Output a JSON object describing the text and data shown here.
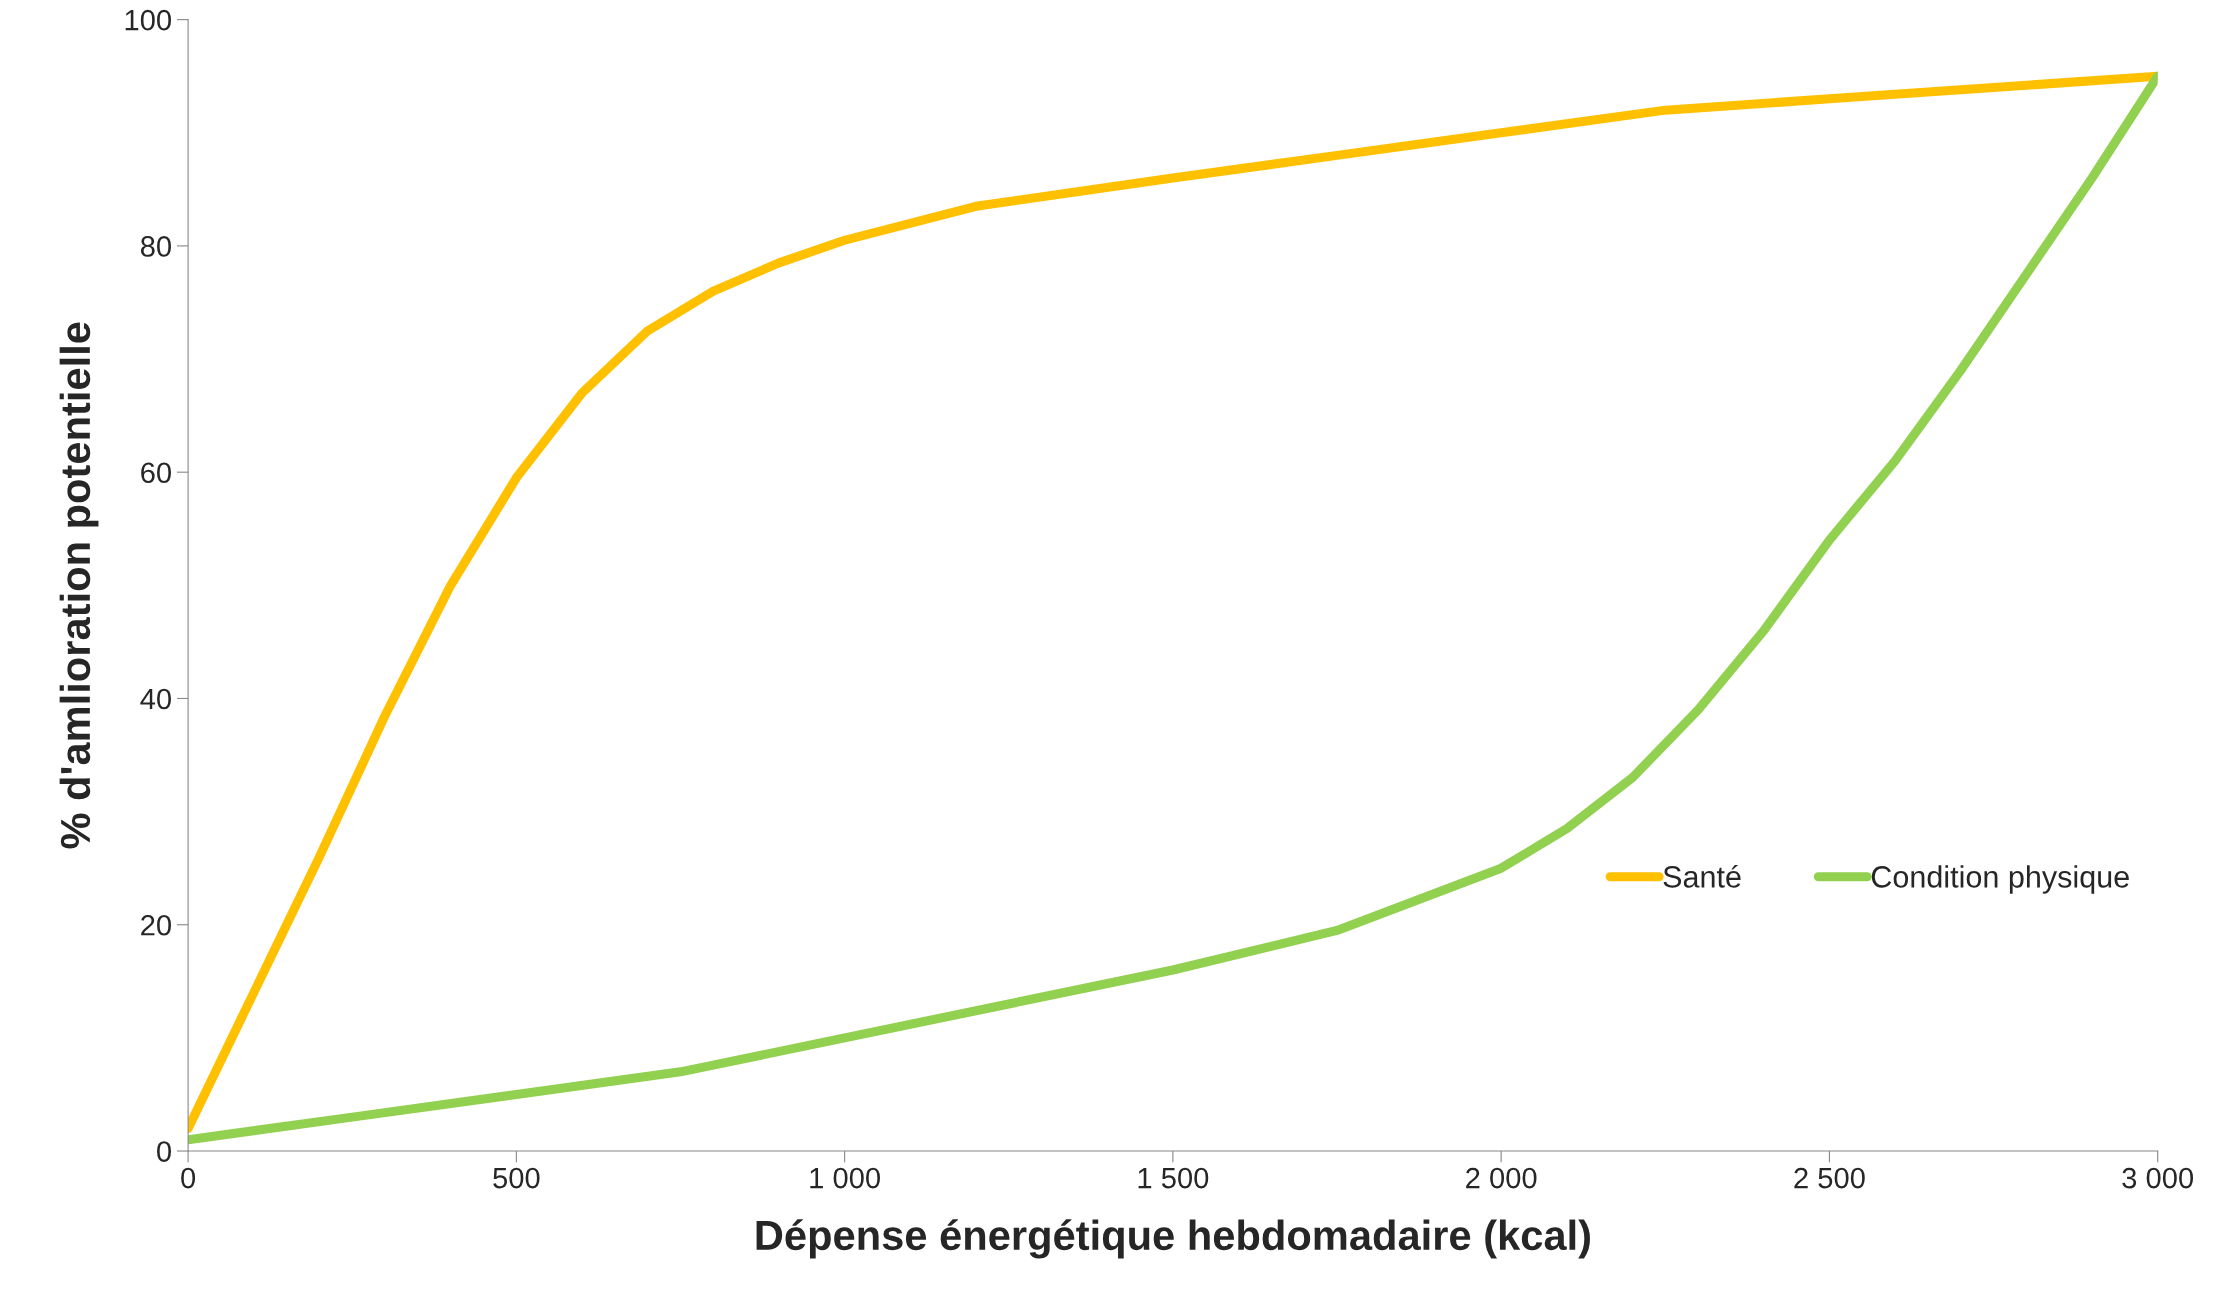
{
  "chart_data": {
    "type": "line",
    "xlabel": "Dépense énergétique hebdomadaire (kcal)",
    "ylabel": "% d'amlioration potentielle",
    "xlim": [
      0,
      3000
    ],
    "ylim": [
      0,
      100
    ],
    "xticks": [
      0,
      500,
      {
        "value": 1000,
        "label": "1 000"
      },
      {
        "value": 1500,
        "label": "1 500"
      },
      {
        "value": 2000,
        "label": "2 000"
      },
      {
        "value": 2500,
        "label": "2 500"
      },
      {
        "value": 3000,
        "label": "3 000"
      }
    ],
    "yticks": [
      0,
      20,
      40,
      60,
      80,
      100
    ],
    "grid": false,
    "legend": "right",
    "marker": "none",
    "line_style": "solid",
    "series": [
      {
        "name": "Santé",
        "color": "#ffc000",
        "x": [
          0,
          100,
          200,
          300,
          400,
          500,
          600,
          700,
          800,
          900,
          1000,
          1200,
          1500,
          1750,
          2000,
          2250,
          2500,
          2750,
          3000
        ],
        "values": [
          2,
          14,
          26,
          38.5,
          50,
          59.5,
          67,
          72.5,
          76,
          78.5,
          80.5,
          83.5,
          86,
          88,
          90,
          92,
          93,
          94,
          95
        ]
      },
      {
        "name": "Condition physique",
        "color": "#92d050",
        "x": [
          0,
          250,
          500,
          750,
          1000,
          1250,
          1500,
          1750,
          2000,
          2100,
          2200,
          2300,
          2400,
          2500,
          2600,
          2700,
          2800,
          2900,
          3000
        ],
        "values": [
          1,
          3,
          5,
          7,
          10,
          13,
          16,
          19.5,
          25,
          28.5,
          33,
          39,
          46,
          54,
          61,
          69,
          77.5,
          86,
          95
        ]
      }
    ]
  }
}
